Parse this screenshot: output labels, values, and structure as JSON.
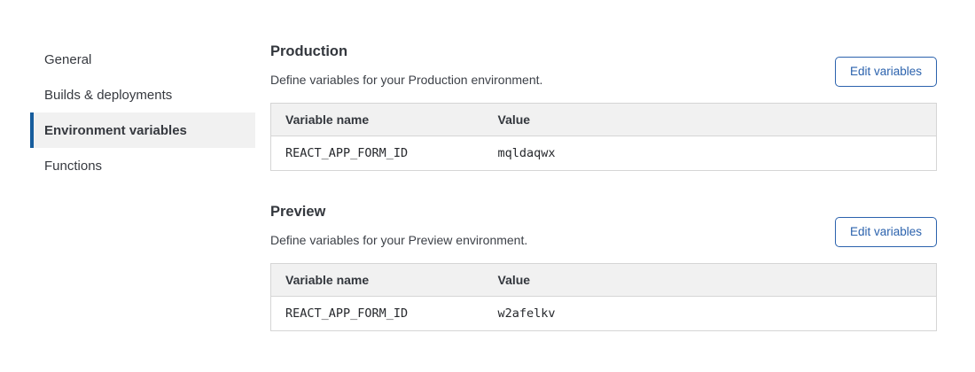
{
  "sidebar": {
    "items": [
      {
        "label": "General"
      },
      {
        "label": "Builds & deployments"
      },
      {
        "label": "Environment variables",
        "active": true
      },
      {
        "label": "Functions"
      }
    ]
  },
  "sections": [
    {
      "title": "Production",
      "description": "Define variables for your Production environment.",
      "button_label": "Edit variables",
      "table": {
        "headers": [
          "Variable name",
          "Value"
        ],
        "rows": [
          {
            "name": "REACT_APP_FORM_ID",
            "value": "mqldaqwx"
          }
        ]
      }
    },
    {
      "title": "Preview",
      "description": "Define variables for your Preview environment.",
      "button_label": "Edit variables",
      "table": {
        "headers": [
          "Variable name",
          "Value"
        ],
        "rows": [
          {
            "name": "REACT_APP_FORM_ID",
            "value": "w2afelkv"
          }
        ]
      }
    }
  ],
  "colors": {
    "accent_blue": "#2b62ad",
    "active_indicator_blue": "#175d9d",
    "active_item_bg": "#f1f1f1",
    "table_header_bg": "#f1f1f1",
    "table_border": "#d5d5d5"
  }
}
